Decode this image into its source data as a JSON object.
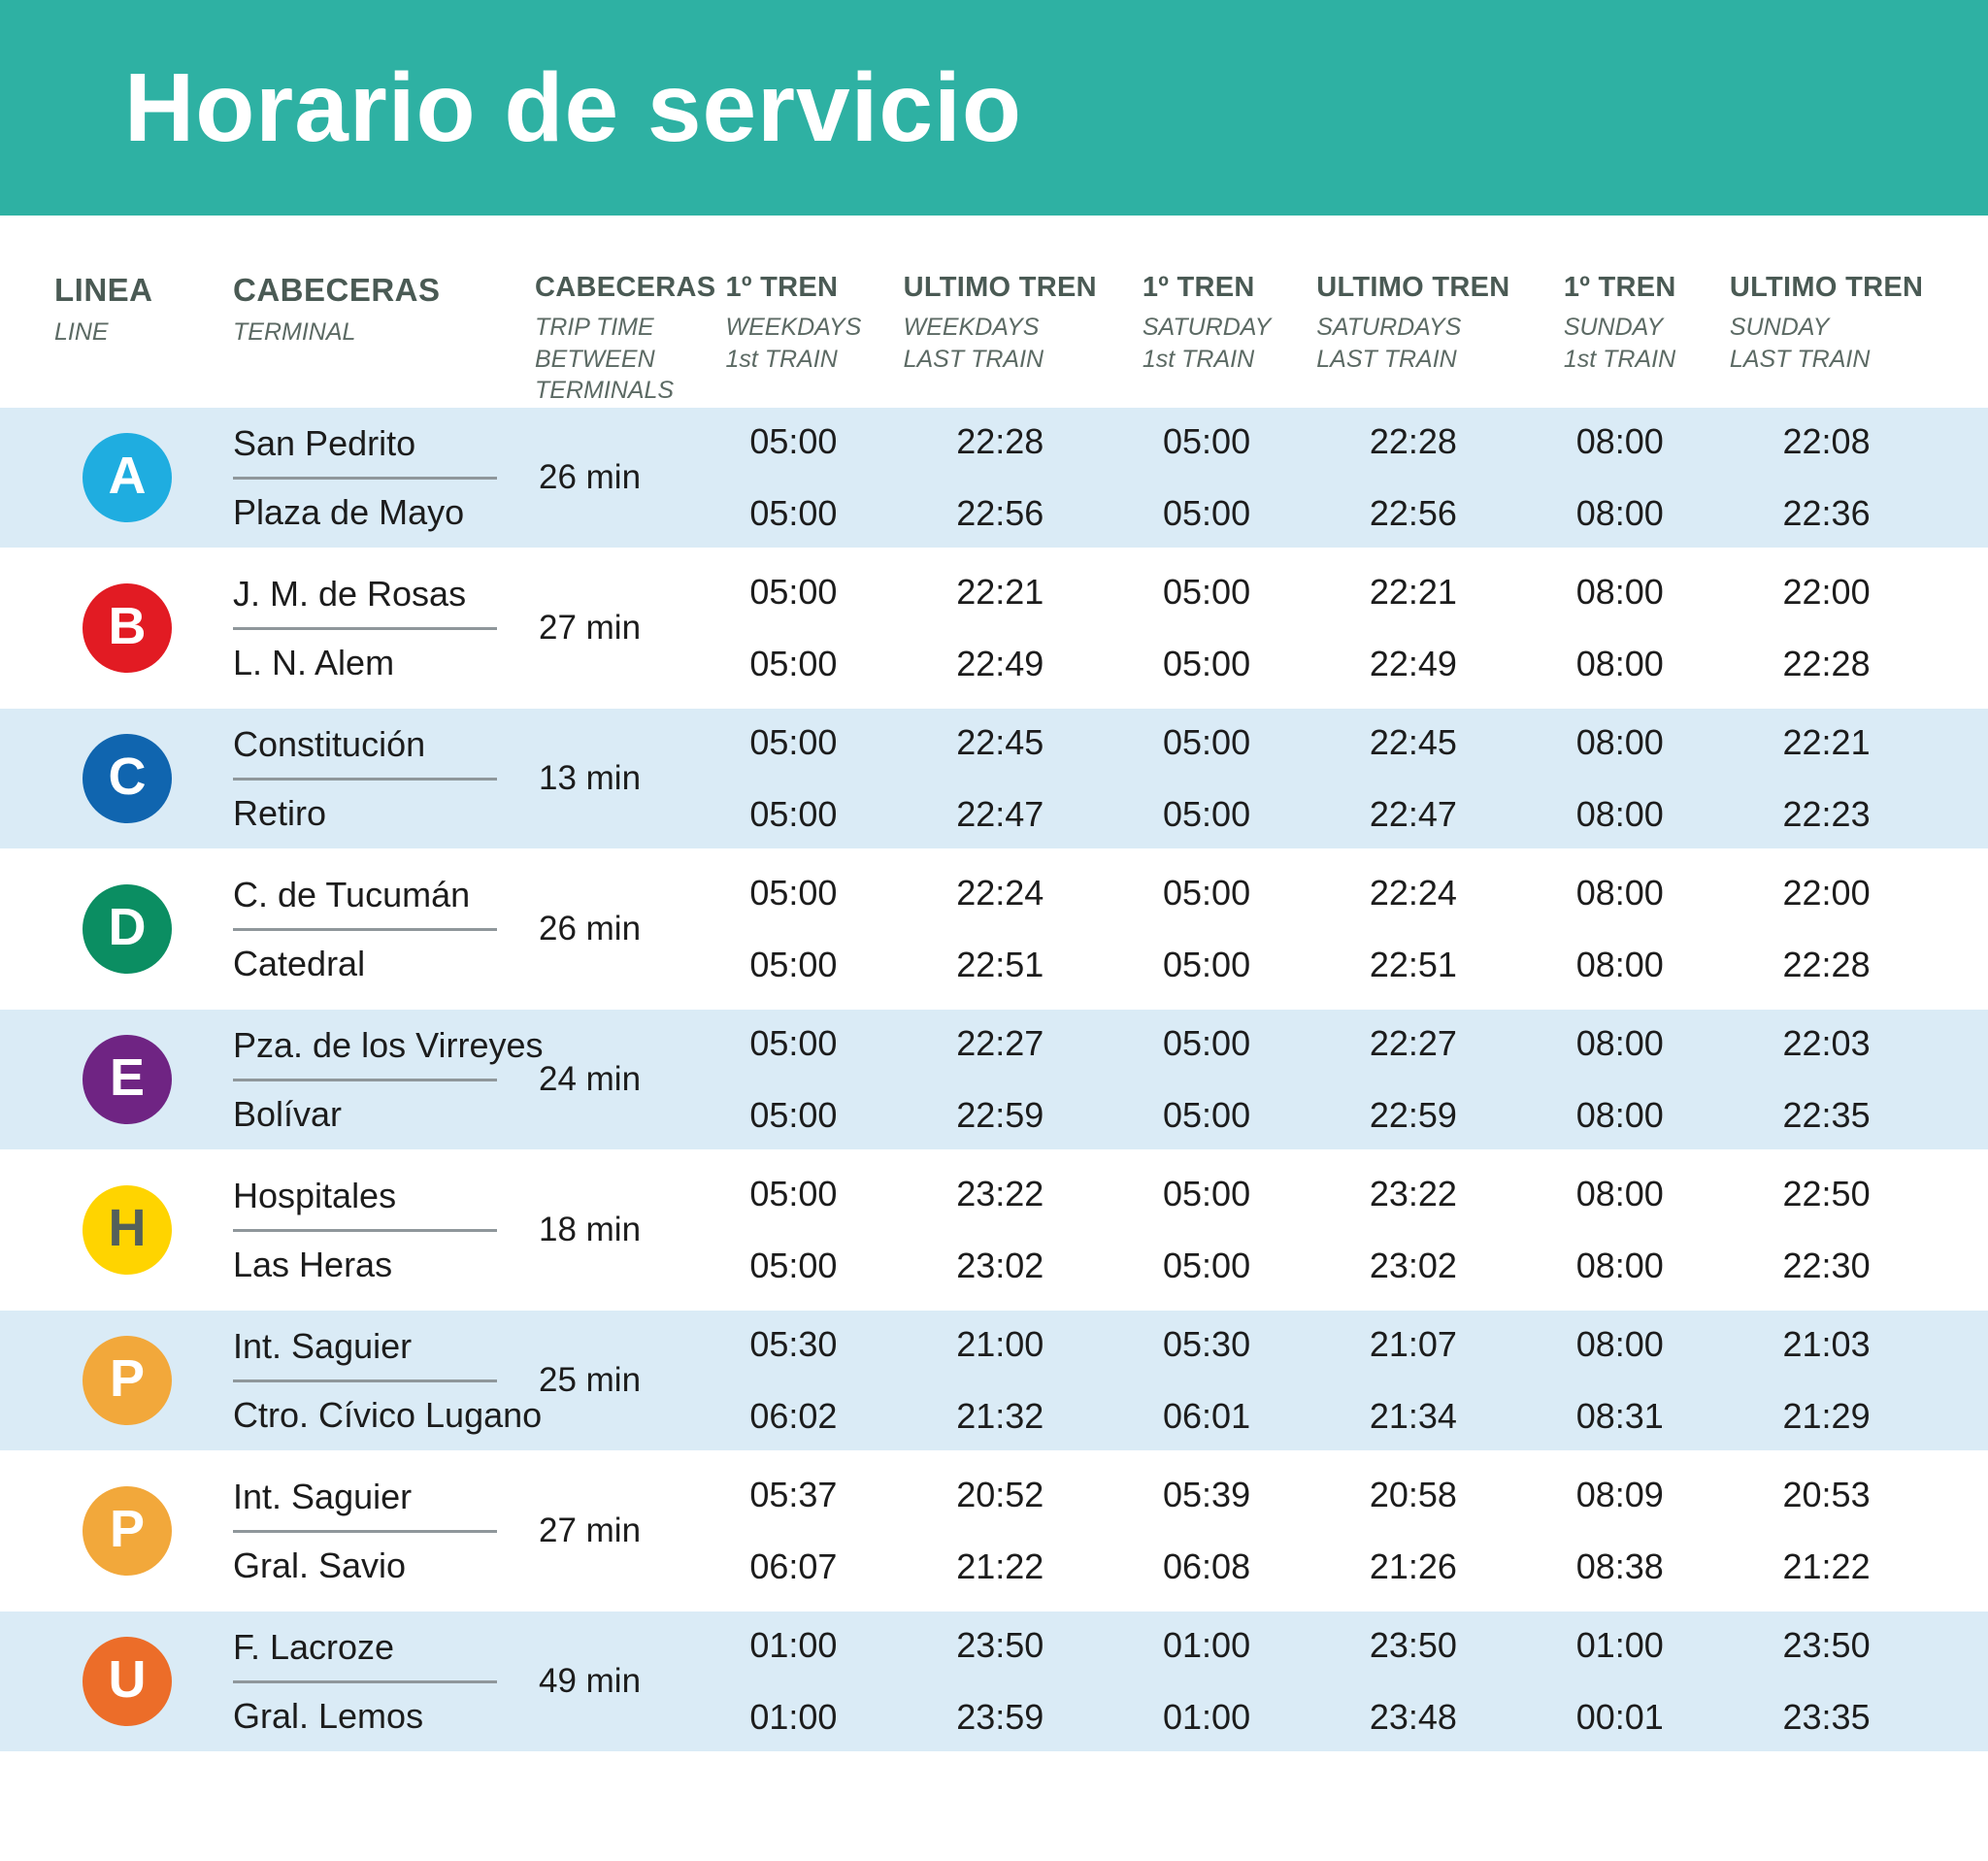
{
  "title": "Horario de servicio",
  "colors": {
    "banner": "#2EB1A3",
    "row_stripe": "#DAEBF6",
    "header_text": "#4A5A54",
    "header_subtext": "#5C6A64"
  },
  "columns": [
    {
      "label": "LINEA",
      "sub1": "LINE",
      "sub2": ""
    },
    {
      "label": "CABECERAS",
      "sub1": "TERMINAL",
      "sub2": ""
    },
    {
      "label": "CABECERAS",
      "sub1": "TRIP TIME BETWEEN",
      "sub2": "TERMINALS"
    },
    {
      "label": "1º TREN",
      "sub1": "WEEKDAYS",
      "sub2": "1st TRAIN"
    },
    {
      "label": "ULTIMO TREN",
      "sub1": "WEEKDAYS",
      "sub2": "LAST TRAIN"
    },
    {
      "label": "1º TREN",
      "sub1": "SATURDAY",
      "sub2": "1st TRAIN"
    },
    {
      "label": "ULTIMO TREN",
      "sub1": "SATURDAYS",
      "sub2": "LAST TRAIN"
    },
    {
      "label": "1º TREN",
      "sub1": "SUNDAY",
      "sub2": "1st TRAIN"
    },
    {
      "label": "ULTIMO TREN",
      "sub1": "SUNDAY",
      "sub2": "LAST TRAIN"
    }
  ],
  "rows": [
    {
      "line": "A",
      "badge_color": "#1FADE0",
      "letter_color": "#FFFFFF",
      "terminal_top": "San Pedrito",
      "terminal_bottom": "Plaza de Mayo",
      "trip_time": "26 min",
      "times": [
        [
          "05:00",
          "05:00"
        ],
        [
          "22:28",
          "22:56"
        ],
        [
          "05:00",
          "05:00"
        ],
        [
          "22:28",
          "22:56"
        ],
        [
          "08:00",
          "08:00"
        ],
        [
          "22:08",
          "22:36"
        ]
      ]
    },
    {
      "line": "B",
      "badge_color": "#E21B23",
      "letter_color": "#FFFFFF",
      "terminal_top": "J. M. de Rosas",
      "terminal_bottom": "L. N. Alem",
      "trip_time": "27 min",
      "times": [
        [
          "05:00",
          "05:00"
        ],
        [
          "22:21",
          "22:49"
        ],
        [
          "05:00",
          "05:00"
        ],
        [
          "22:21",
          "22:49"
        ],
        [
          "08:00",
          "08:00"
        ],
        [
          "22:00",
          "22:28"
        ]
      ]
    },
    {
      "line": "C",
      "badge_color": "#1065AF",
      "letter_color": "#FFFFFF",
      "terminal_top": "Constitución",
      "terminal_bottom": "Retiro",
      "trip_time": "13 min",
      "times": [
        [
          "05:00",
          "05:00"
        ],
        [
          "22:45",
          "22:47"
        ],
        [
          "05:00",
          "05:00"
        ],
        [
          "22:45",
          "22:47"
        ],
        [
          "08:00",
          "08:00"
        ],
        [
          "22:21",
          "22:23"
        ]
      ]
    },
    {
      "line": "D",
      "badge_color": "#0B8E62",
      "letter_color": "#FFFFFF",
      "terminal_top": "C. de Tucumán",
      "terminal_bottom": "Catedral",
      "trip_time": "26 min",
      "times": [
        [
          "05:00",
          "05:00"
        ],
        [
          "22:24",
          "22:51"
        ],
        [
          "05:00",
          "05:00"
        ],
        [
          "22:24",
          "22:51"
        ],
        [
          "08:00",
          "08:00"
        ],
        [
          "22:00",
          "22:28"
        ]
      ]
    },
    {
      "line": "E",
      "badge_color": "#6F2483",
      "letter_color": "#FFFFFF",
      "terminal_top": "Pza. de los Virreyes",
      "terminal_bottom": "Bolívar",
      "trip_time": "24 min",
      "times": [
        [
          "05:00",
          "05:00"
        ],
        [
          "22:27",
          "22:59"
        ],
        [
          "05:00",
          "05:00"
        ],
        [
          "22:27",
          "22:59"
        ],
        [
          "08:00",
          "08:00"
        ],
        [
          "22:03",
          "22:35"
        ]
      ]
    },
    {
      "line": "H",
      "badge_color": "#FFD400",
      "letter_color": "#54605A",
      "terminal_top": "Hospitales",
      "terminal_bottom": "Las Heras",
      "trip_time": "18 min",
      "times": [
        [
          "05:00",
          "05:00"
        ],
        [
          "23:22",
          "23:02"
        ],
        [
          "05:00",
          "05:00"
        ],
        [
          "23:22",
          "23:02"
        ],
        [
          "08:00",
          "08:00"
        ],
        [
          "22:50",
          "22:30"
        ]
      ]
    },
    {
      "line": "P",
      "badge_color": "#F2A83B",
      "letter_color": "#FFFFFF",
      "terminal_top": "Int. Saguier",
      "terminal_bottom": "Ctro. Cívico Lugano",
      "trip_time": "25 min",
      "times": [
        [
          "05:30",
          "06:02"
        ],
        [
          "21:00",
          "21:32"
        ],
        [
          "05:30",
          "06:01"
        ],
        [
          "21:07",
          "21:34"
        ],
        [
          "08:00",
          "08:31"
        ],
        [
          "21:03",
          "21:29"
        ]
      ]
    },
    {
      "line": "P",
      "badge_color": "#F2A83B",
      "letter_color": "#FFFFFF",
      "terminal_top": "Int. Saguier",
      "terminal_bottom": "Gral. Savio",
      "trip_time": "27 min",
      "times": [
        [
          "05:37",
          "06:07"
        ],
        [
          "20:52",
          "21:22"
        ],
        [
          "05:39",
          "06:08"
        ],
        [
          "20:58",
          "21:26"
        ],
        [
          "08:09",
          "08:38"
        ],
        [
          "20:53",
          "21:22"
        ]
      ]
    },
    {
      "line": "U",
      "badge_color": "#EC6D29",
      "letter_color": "#FFFFFF",
      "terminal_top": "F. Lacroze",
      "terminal_bottom": "Gral. Lemos",
      "trip_time": "49 min",
      "times": [
        [
          "01:00",
          "01:00"
        ],
        [
          "23:50",
          "23:59"
        ],
        [
          "01:00",
          "01:00"
        ],
        [
          "23:50",
          "23:48"
        ],
        [
          "01:00",
          "00:01"
        ],
        [
          "23:50",
          "23:35"
        ]
      ]
    }
  ]
}
